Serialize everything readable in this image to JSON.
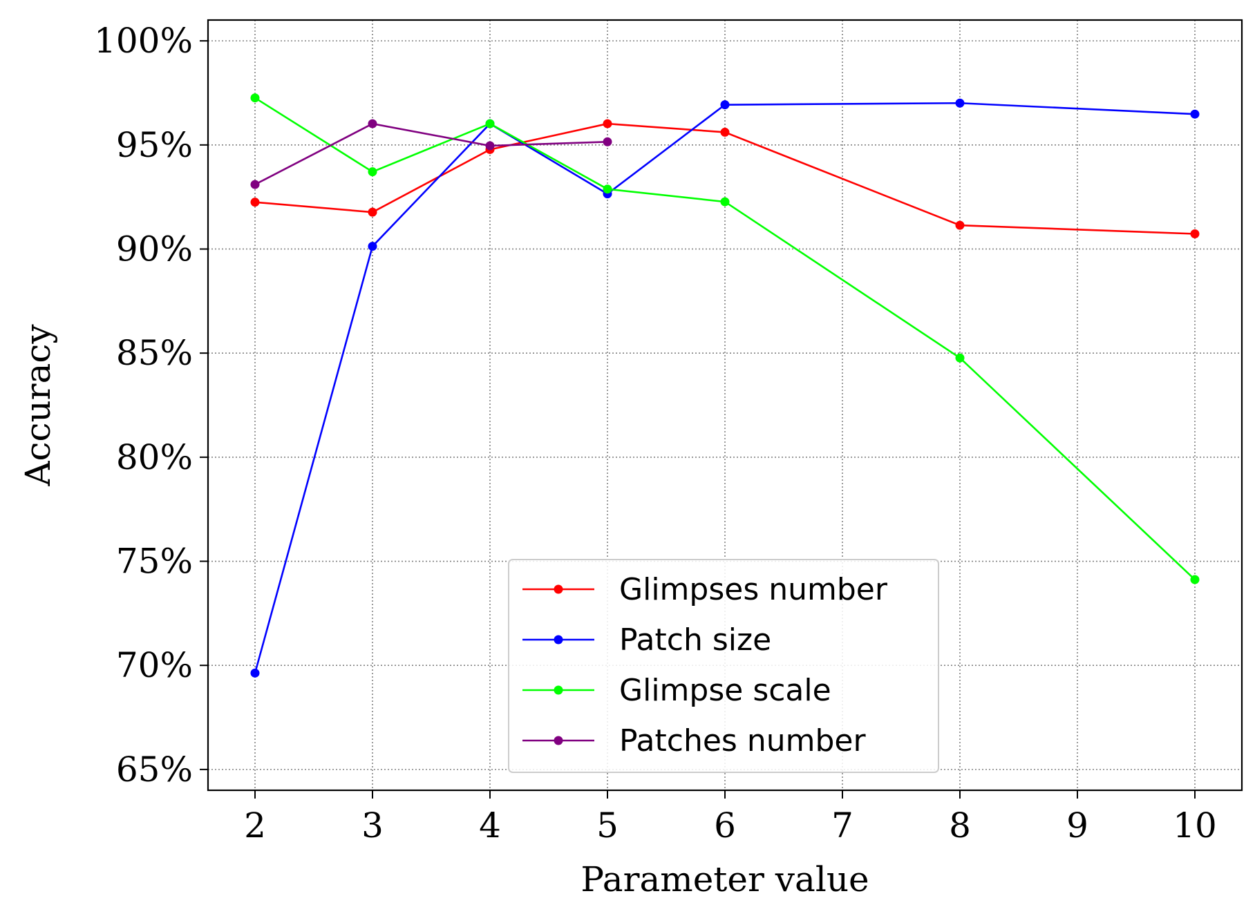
{
  "chart_data": {
    "type": "line",
    "title": "",
    "xlabel": "Parameter value",
    "ylabel": "Accuracy",
    "xlim": [
      1.6,
      10.4
    ],
    "ylim": [
      0.64,
      1.01
    ],
    "x_ticks": [
      2,
      3,
      4,
      5,
      6,
      7,
      8,
      9,
      10
    ],
    "x_tick_labels": [
      "2",
      "3",
      "4",
      "5",
      "6",
      "7",
      "8",
      "9",
      "10"
    ],
    "y_ticks": [
      0.65,
      0.7,
      0.75,
      0.8,
      0.85,
      0.9,
      0.95,
      1.0
    ],
    "y_tick_labels": [
      "65%",
      "70%",
      "75%",
      "80%",
      "85%",
      "90%",
      "95%",
      "100%"
    ],
    "grid": true,
    "legend_position": "lower center",
    "series": [
      {
        "name": "Glimpses number",
        "color": "#ff0000",
        "x": [
          2,
          3,
          4,
          5,
          6,
          8,
          10
        ],
        "y": [
          0.9225,
          0.9177,
          0.9478,
          0.9602,
          0.9561,
          0.9114,
          0.9073
        ]
      },
      {
        "name": "Patch size",
        "color": "#0000ff",
        "x": [
          2,
          3,
          4,
          5,
          6,
          8,
          10
        ],
        "y": [
          0.6963,
          0.9013,
          0.9602,
          0.9265,
          0.9693,
          0.9701,
          0.9648
        ]
      },
      {
        "name": "Glimpse scale",
        "color": "#00ff00",
        "x": [
          2,
          3,
          4,
          5,
          6,
          8,
          10
        ],
        "y": [
          0.9726,
          0.9371,
          0.9602,
          0.9288,
          0.9227,
          0.8477,
          0.7412
        ]
      },
      {
        "name": "Patches number",
        "color": "#800080",
        "x": [
          2,
          3,
          4,
          5
        ],
        "y": [
          0.931,
          0.9602,
          0.9496,
          0.9515
        ]
      }
    ]
  }
}
